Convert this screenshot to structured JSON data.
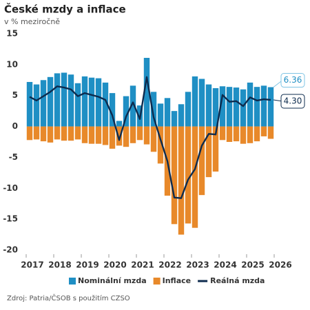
{
  "chart_data": {
    "type": "bar_line",
    "title": "České mzdy a inflace",
    "subtitle": "v % meziročně",
    "source": "Zdroj: Patria/ČSOB s použitím CZSO",
    "categories": [
      null,
      null,
      null,
      null,
      null,
      null,
      null,
      null,
      null,
      null,
      null,
      null,
      null,
      null,
      null,
      null,
      null,
      null,
      null,
      null,
      null,
      null,
      null,
      null,
      null,
      null,
      null,
      null,
      null,
      null,
      null,
      null,
      null,
      null,
      null,
      null
    ],
    "xlim": [
      2017,
      2026
    ],
    "xticks": [
      2017,
      2018,
      2019,
      2020,
      2021,
      2022,
      2023,
      2024,
      2025,
      2026
    ],
    "ylim": [
      -20,
      15
    ],
    "yticks": [
      -20,
      -15,
      -10,
      -5,
      0,
      5,
      10,
      15
    ],
    "grid": false,
    "legend": "bottom",
    "series": [
      {
        "name": "Nominální mzda",
        "kind": "bar",
        "color": "#1f8fc4",
        "values": [
          7.2,
          6.8,
          7.5,
          8.0,
          8.6,
          8.7,
          8.4,
          7.0,
          8.1,
          7.9,
          7.8,
          7.1,
          5.4,
          0.9,
          4.9,
          6.6,
          3.4,
          11.1,
          5.6,
          3.7,
          4.6,
          2.5,
          3.6,
          5.6,
          8.1,
          7.7,
          6.8,
          6.2,
          6.5,
          6.4,
          6.3,
          6.0,
          7.1,
          6.4,
          6.6,
          6.36
        ],
        "value_labels": [
          null,
          null,
          null,
          null,
          null,
          null,
          null,
          null,
          null,
          null,
          null,
          null,
          null,
          null,
          null,
          null,
          null,
          null,
          null,
          null,
          null,
          null,
          null,
          null,
          null,
          null,
          null,
          null,
          null,
          null,
          null,
          null,
          null,
          null,
          null,
          "6.36"
        ]
      },
      {
        "name": "Inflace",
        "kind": "bar",
        "color": "#e8892a",
        "values": [
          -2.2,
          -2.1,
          -2.4,
          -2.6,
          -2.1,
          -2.3,
          -2.3,
          -2.1,
          -2.7,
          -2.8,
          -2.8,
          -3.0,
          -3.6,
          -3.1,
          -3.3,
          -2.7,
          -2.2,
          -2.9,
          -4.1,
          -6.0,
          -11.2,
          -15.8,
          -17.5,
          -15.7,
          -16.4,
          -11.1,
          -8.2,
          -7.3,
          -2.2,
          -2.5,
          -2.4,
          -2.8,
          -2.7,
          -2.4,
          -1.6,
          -2.0
        ]
      },
      {
        "name": "Reálná mzda",
        "kind": "line",
        "color": "#0d2b4e",
        "values": [
          4.8,
          4.2,
          4.9,
          5.6,
          6.5,
          6.3,
          6.0,
          4.9,
          5.4,
          5.1,
          4.8,
          4.3,
          1.8,
          -2.2,
          1.6,
          3.9,
          1.2,
          8.0,
          1.5,
          -2.1,
          -5.6,
          -11.5,
          -11.6,
          -8.6,
          -6.9,
          -3.1,
          -1.2,
          -1.3,
          5.1,
          4.0,
          4.1,
          3.3,
          4.7,
          4.2,
          4.4,
          4.3
        ],
        "value_labels": [
          null,
          null,
          null,
          null,
          null,
          null,
          null,
          null,
          null,
          null,
          null,
          null,
          null,
          null,
          null,
          null,
          null,
          null,
          null,
          null,
          null,
          null,
          null,
          null,
          null,
          null,
          null,
          null,
          null,
          null,
          null,
          null,
          null,
          null,
          null,
          "4.30"
        ]
      }
    ]
  }
}
